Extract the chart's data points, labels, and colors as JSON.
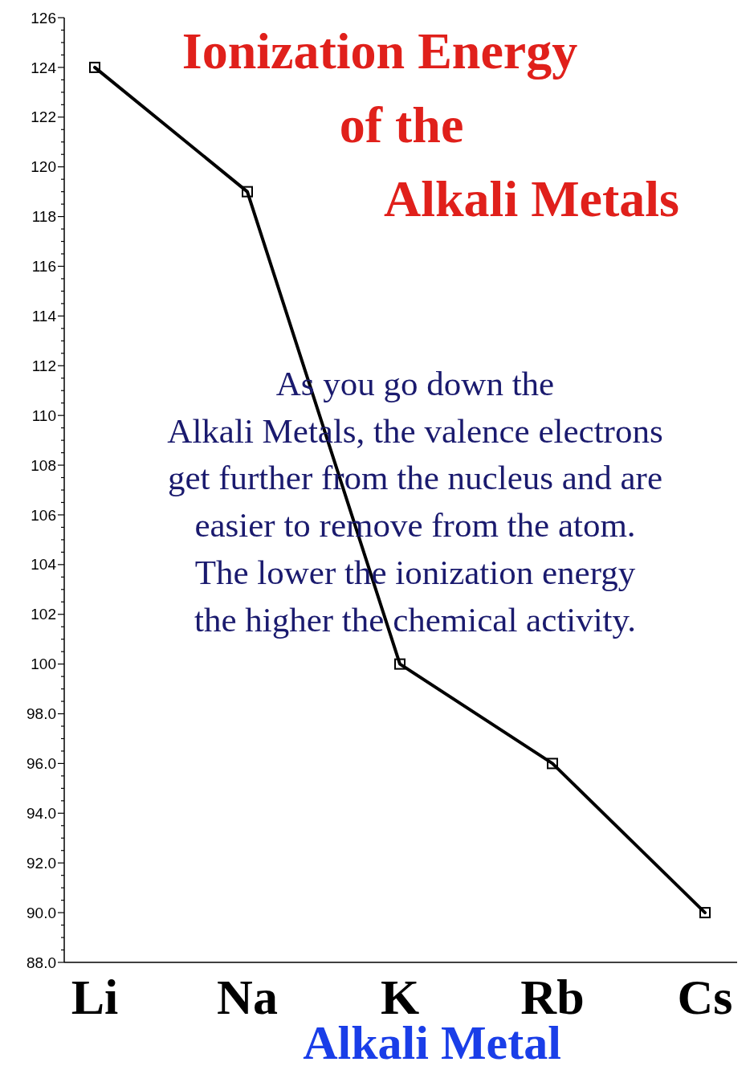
{
  "chart_data": {
    "type": "line",
    "title": "Ionization Energy\nof the\nAlkali Metals",
    "xlabel": "Alkali Metal",
    "annotations": [
      "As you go down the\nAlkali Metals, the valence electrons\nget further from the nucleus and are\neasier to remove from the atom.\nThe lower the ionization energy\nthe higher the chemical activity."
    ],
    "categories": [
      "Li",
      "Na",
      "K",
      "Rb",
      "Cs"
    ],
    "series": [
      {
        "color": "#000000",
        "values": [
          124,
          119,
          100,
          96,
          90
        ]
      }
    ],
    "ylim": [
      88,
      126
    ],
    "yticks": [
      {
        "value": 88,
        "label": "88.0"
      },
      {
        "value": 88.5,
        "label": null
      },
      {
        "value": 89,
        "label": null
      },
      {
        "value": 89.5,
        "label": null
      },
      {
        "value": 90,
        "label": "90.0"
      },
      {
        "value": 90.5,
        "label": null
      },
      {
        "value": 91,
        "label": null
      },
      {
        "value": 91.5,
        "label": null
      },
      {
        "value": 92,
        "label": "92.0"
      },
      {
        "value": 92.5,
        "label": null
      },
      {
        "value": 93,
        "label": null
      },
      {
        "value": 93.5,
        "label": null
      },
      {
        "value": 94,
        "label": "94.0"
      },
      {
        "value": 94.5,
        "label": null
      },
      {
        "value": 95,
        "label": null
      },
      {
        "value": 95.5,
        "label": null
      },
      {
        "value": 96,
        "label": "96.0"
      },
      {
        "value": 96.5,
        "label": null
      },
      {
        "value": 97,
        "label": null
      },
      {
        "value": 97.5,
        "label": null
      },
      {
        "value": 98,
        "label": "98.0"
      },
      {
        "value": 98.5,
        "label": null
      },
      {
        "value": 99,
        "label": null
      },
      {
        "value": 99.5,
        "label": null
      },
      100,
      {
        "value": 100.5,
        "label": null
      },
      {
        "value": 101,
        "label": null
      },
      {
        "value": 101.5,
        "label": null
      },
      102,
      {
        "value": 102.5,
        "label": null
      },
      {
        "value": 103,
        "label": null
      },
      {
        "value": 103.5,
        "label": null
      },
      104,
      {
        "value": 104.5,
        "label": null
      },
      {
        "value": 105,
        "label": null
      },
      {
        "value": 105.5,
        "label": null
      },
      106,
      {
        "value": 106.5,
        "label": null
      },
      {
        "value": 107,
        "label": null
      },
      {
        "value": 107.5,
        "label": null
      },
      108,
      {
        "value": 108.5,
        "label": null
      },
      {
        "value": 109,
        "label": null
      },
      {
        "value": 109.5,
        "label": null
      },
      110,
      {
        "value": 110.5,
        "label": null
      },
      {
        "value": 111,
        "label": null
      },
      {
        "value": 111.5,
        "label": null
      },
      112,
      {
        "value": 112.5,
        "label": null
      },
      {
        "value": 113,
        "label": null
      },
      {
        "value": 113.5,
        "label": null
      },
      114,
      {
        "value": 114.5,
        "label": null
      },
      {
        "value": 115,
        "label": null
      },
      {
        "value": 115.5,
        "label": null
      },
      116,
      {
        "value": 116.5,
        "label": null
      },
      {
        "value": 117,
        "label": null
      },
      {
        "value": 117.5,
        "label": null
      },
      118,
      {
        "value": 118.5,
        "label": null
      },
      {
        "value": 119,
        "label": null
      },
      {
        "value": 119.5,
        "label": null
      },
      120,
      {
        "value": 120.5,
        "label": null
      },
      {
        "value": 121,
        "label": null
      },
      {
        "value": 121.5,
        "label": null
      },
      122,
      {
        "value": 122.5,
        "label": null
      },
      {
        "value": 123,
        "label": null
      },
      {
        "value": 123.5,
        "label": null
      },
      124,
      {
        "value": 124.5,
        "label": null
      },
      {
        "value": 125,
        "label": null
      },
      {
        "value": 125.5,
        "label": null
      },
      126
    ],
    "grid": false,
    "marker": "square",
    "line_style": "solid"
  }
}
